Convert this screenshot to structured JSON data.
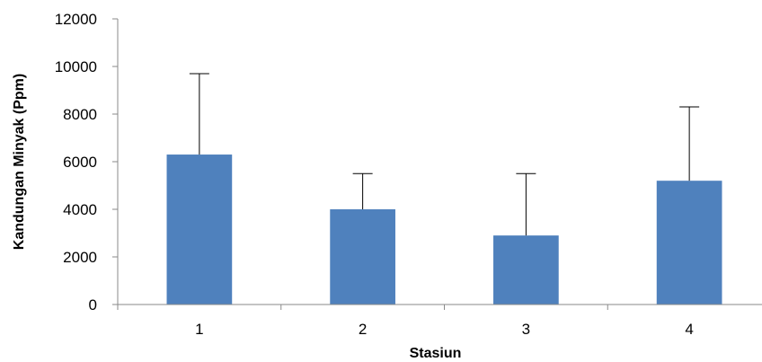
{
  "chart_data": {
    "type": "bar",
    "categories": [
      "1",
      "2",
      "3",
      "4"
    ],
    "values": [
      6300,
      4000,
      2900,
      5200
    ],
    "error_plus": [
      3400,
      1500,
      2600,
      3100
    ],
    "xlabel": "Stasiun",
    "ylabel": "Kandungan Minyak (Ppm)",
    "ylim": [
      0,
      12000
    ],
    "yticks": [
      0,
      2000,
      4000,
      6000,
      8000,
      10000,
      12000
    ],
    "grid": false,
    "legend": "none",
    "bar_color": "#4f81bd"
  }
}
